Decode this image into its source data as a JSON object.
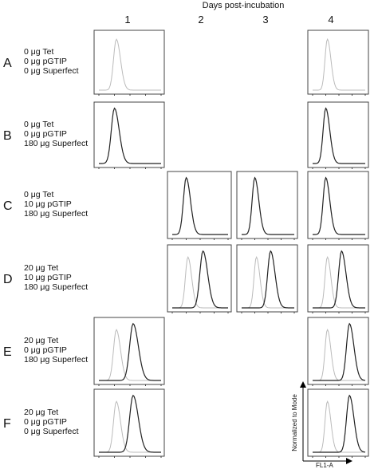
{
  "header": "Days post-incubation",
  "columns": [
    "1",
    "2",
    "3",
    "4"
  ],
  "rows": [
    {
      "letter": "A",
      "lines": [
        "0 μg Tet",
        "0 μg pGTIP",
        "0 μg Superfect"
      ]
    },
    {
      "letter": "B",
      "lines": [
        "0 μg Tet",
        "0 μg pGTIP",
        "180 μg Superfect"
      ]
    },
    {
      "letter": "C",
      "lines": [
        "0 μg Tet",
        "10 μg pGTIP",
        "180 μg Superfect"
      ]
    },
    {
      "letter": "D",
      "lines": [
        "20 μg Tet",
        "10 μg pGTIP",
        "180 μg Superfect"
      ]
    },
    {
      "letter": "E",
      "lines": [
        "20 μg Tet",
        "0 μg pGTIP",
        "180 μg Superfect"
      ]
    },
    {
      "letter": "F",
      "lines": [
        "20 μg Tet",
        "0 μg pGTIP",
        "0 μg Superfect"
      ]
    }
  ],
  "axis_labels": {
    "y": "Normalized to Mode",
    "x": "FL1-A"
  }
}
